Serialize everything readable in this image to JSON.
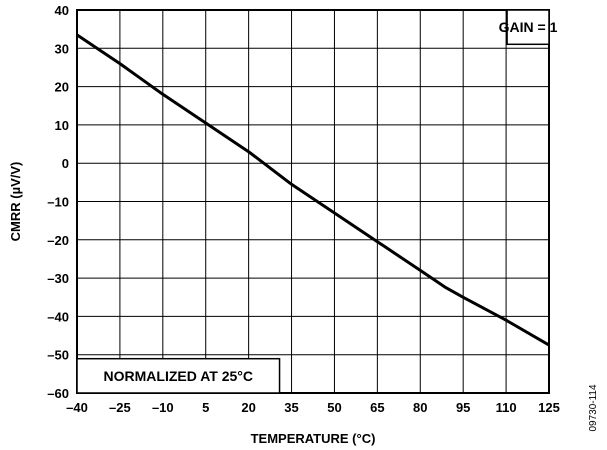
{
  "chart_data": {
    "type": "line",
    "xlabel": "TEMPERATURE (°C)",
    "ylabel": "CMRR (µV/V)",
    "xlim": [
      -40,
      125
    ],
    "ylim": [
      -60,
      40
    ],
    "xticks": [
      -40,
      -25,
      -10,
      5,
      20,
      35,
      50,
      65,
      80,
      95,
      110,
      125
    ],
    "xtick_labels": [
      "–40",
      "–25",
      "–10",
      "5",
      "20",
      "35",
      "50",
      "65",
      "80",
      "95",
      "110",
      "125"
    ],
    "yticks": [
      40,
      30,
      20,
      10,
      0,
      -10,
      -20,
      -30,
      -40,
      -50,
      -60
    ],
    "ytick_labels": [
      "40",
      "30",
      "20",
      "10",
      "0",
      "–10",
      "–20",
      "–30",
      "–40",
      "–50",
      "–60"
    ],
    "grid": true,
    "series": [
      {
        "x": [
          -40,
          -25,
          -10,
          5,
          20,
          35,
          50,
          65,
          80,
          89,
          95,
          110,
          125
        ],
        "y": [
          33.5,
          26,
          18,
          10.5,
          3,
          -5.5,
          -13,
          -20.5,
          -28,
          -32.5,
          -35,
          -41,
          -47.5
        ]
      }
    ],
    "annotations": [
      {
        "text": "GAIN = 1",
        "position": "top-right"
      },
      {
        "text": "NORMALIZED AT 25°C",
        "position": "bottom-left"
      }
    ],
    "colors": {
      "line": "#000000",
      "grid": "#000000",
      "background": "#ffffff"
    }
  },
  "figure_id": "09730-114"
}
